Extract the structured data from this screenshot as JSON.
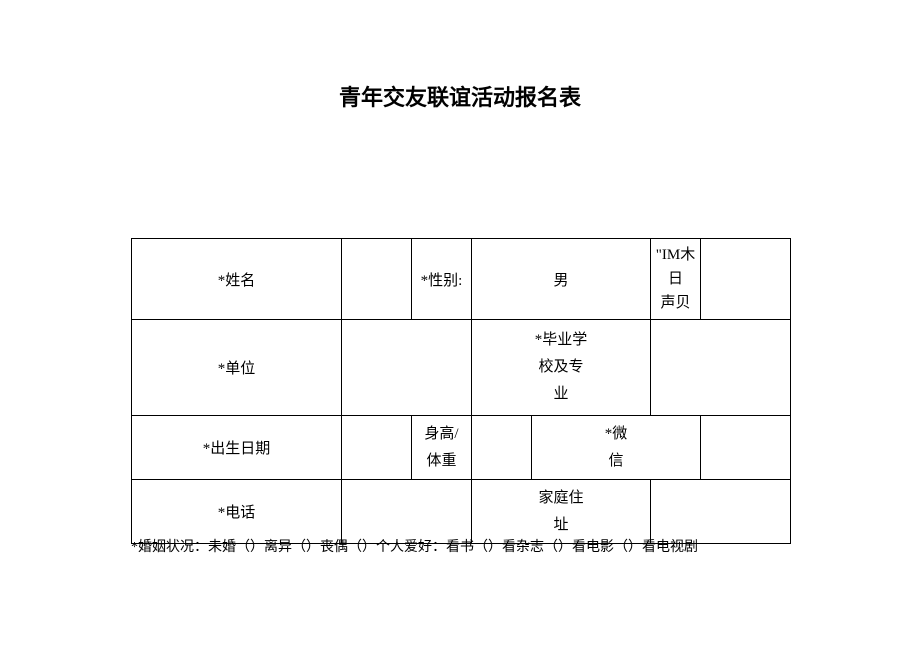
{
  "title": "青年交友联谊活动报名表",
  "table": {
    "row1": {
      "name_label": "*姓名",
      "gender_label": "*性别:",
      "gender_value": "男",
      "tiny_line1": "\"IM木日",
      "tiny_line2": "声贝"
    },
    "row2": {
      "unit_label": "*单位",
      "school_label": "*毕业学校及专业"
    },
    "row3": {
      "birth_label": "*出生日期",
      "height_label": "身高/体重",
      "wechat_label": "*微信"
    },
    "row4": {
      "phone_label": "*电话",
      "address_label": "家庭住址"
    }
  },
  "bottom_text": "*婚姻状况：未婚（）离异（）丧偶（）个人爱好：看书（）看杂志（）看电影（）看电视剧"
}
